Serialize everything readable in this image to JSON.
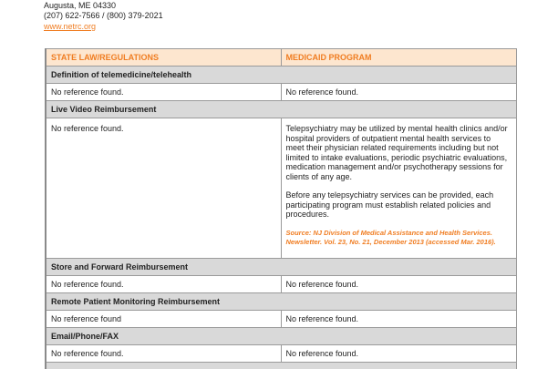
{
  "address": {
    "city_line": "Augusta, ME 04330",
    "phone": "(207) 622-7566 / (800) 379-2021",
    "website": "www.netrc.org"
  },
  "table": {
    "headers": [
      "STATE LAW/REGULATIONS",
      "MEDICAID PROGRAM"
    ],
    "sections": [
      {
        "title": "Definition of telemedicine/telehealth",
        "state": "No reference found.",
        "medicaid": "No reference found."
      },
      {
        "title": "Live Video Reimbursement",
        "state": "No reference found.",
        "medicaid_paragraphs": [
          "Telepsychiatry may be utilized by mental health clinics and/or hospital providers of outpatient mental health services to meet their physician related requirements including but not limited to intake evaluations, periodic psychiatric evaluations, medication management and/or psychotherapy sessions for clients of any age.",
          "Before any telepsychiatry services can be provided, each participating program must establish related policies and procedures."
        ],
        "source": "Source: NJ Division of Medical Assistance and Health Services. Newsletter. Vol. 23, No. 21, December 2013 (accessed Mar. 2016)."
      },
      {
        "title": "Store and Forward Reimbursement",
        "state": "No reference found.",
        "medicaid": "No reference found."
      },
      {
        "title": "Remote Patient Monitoring Reimbursement",
        "state": "No reference found",
        "medicaid": "No reference found."
      },
      {
        "title": "Email/Phone/FAX",
        "state": "No reference found.",
        "medicaid": "No reference found."
      }
    ]
  }
}
